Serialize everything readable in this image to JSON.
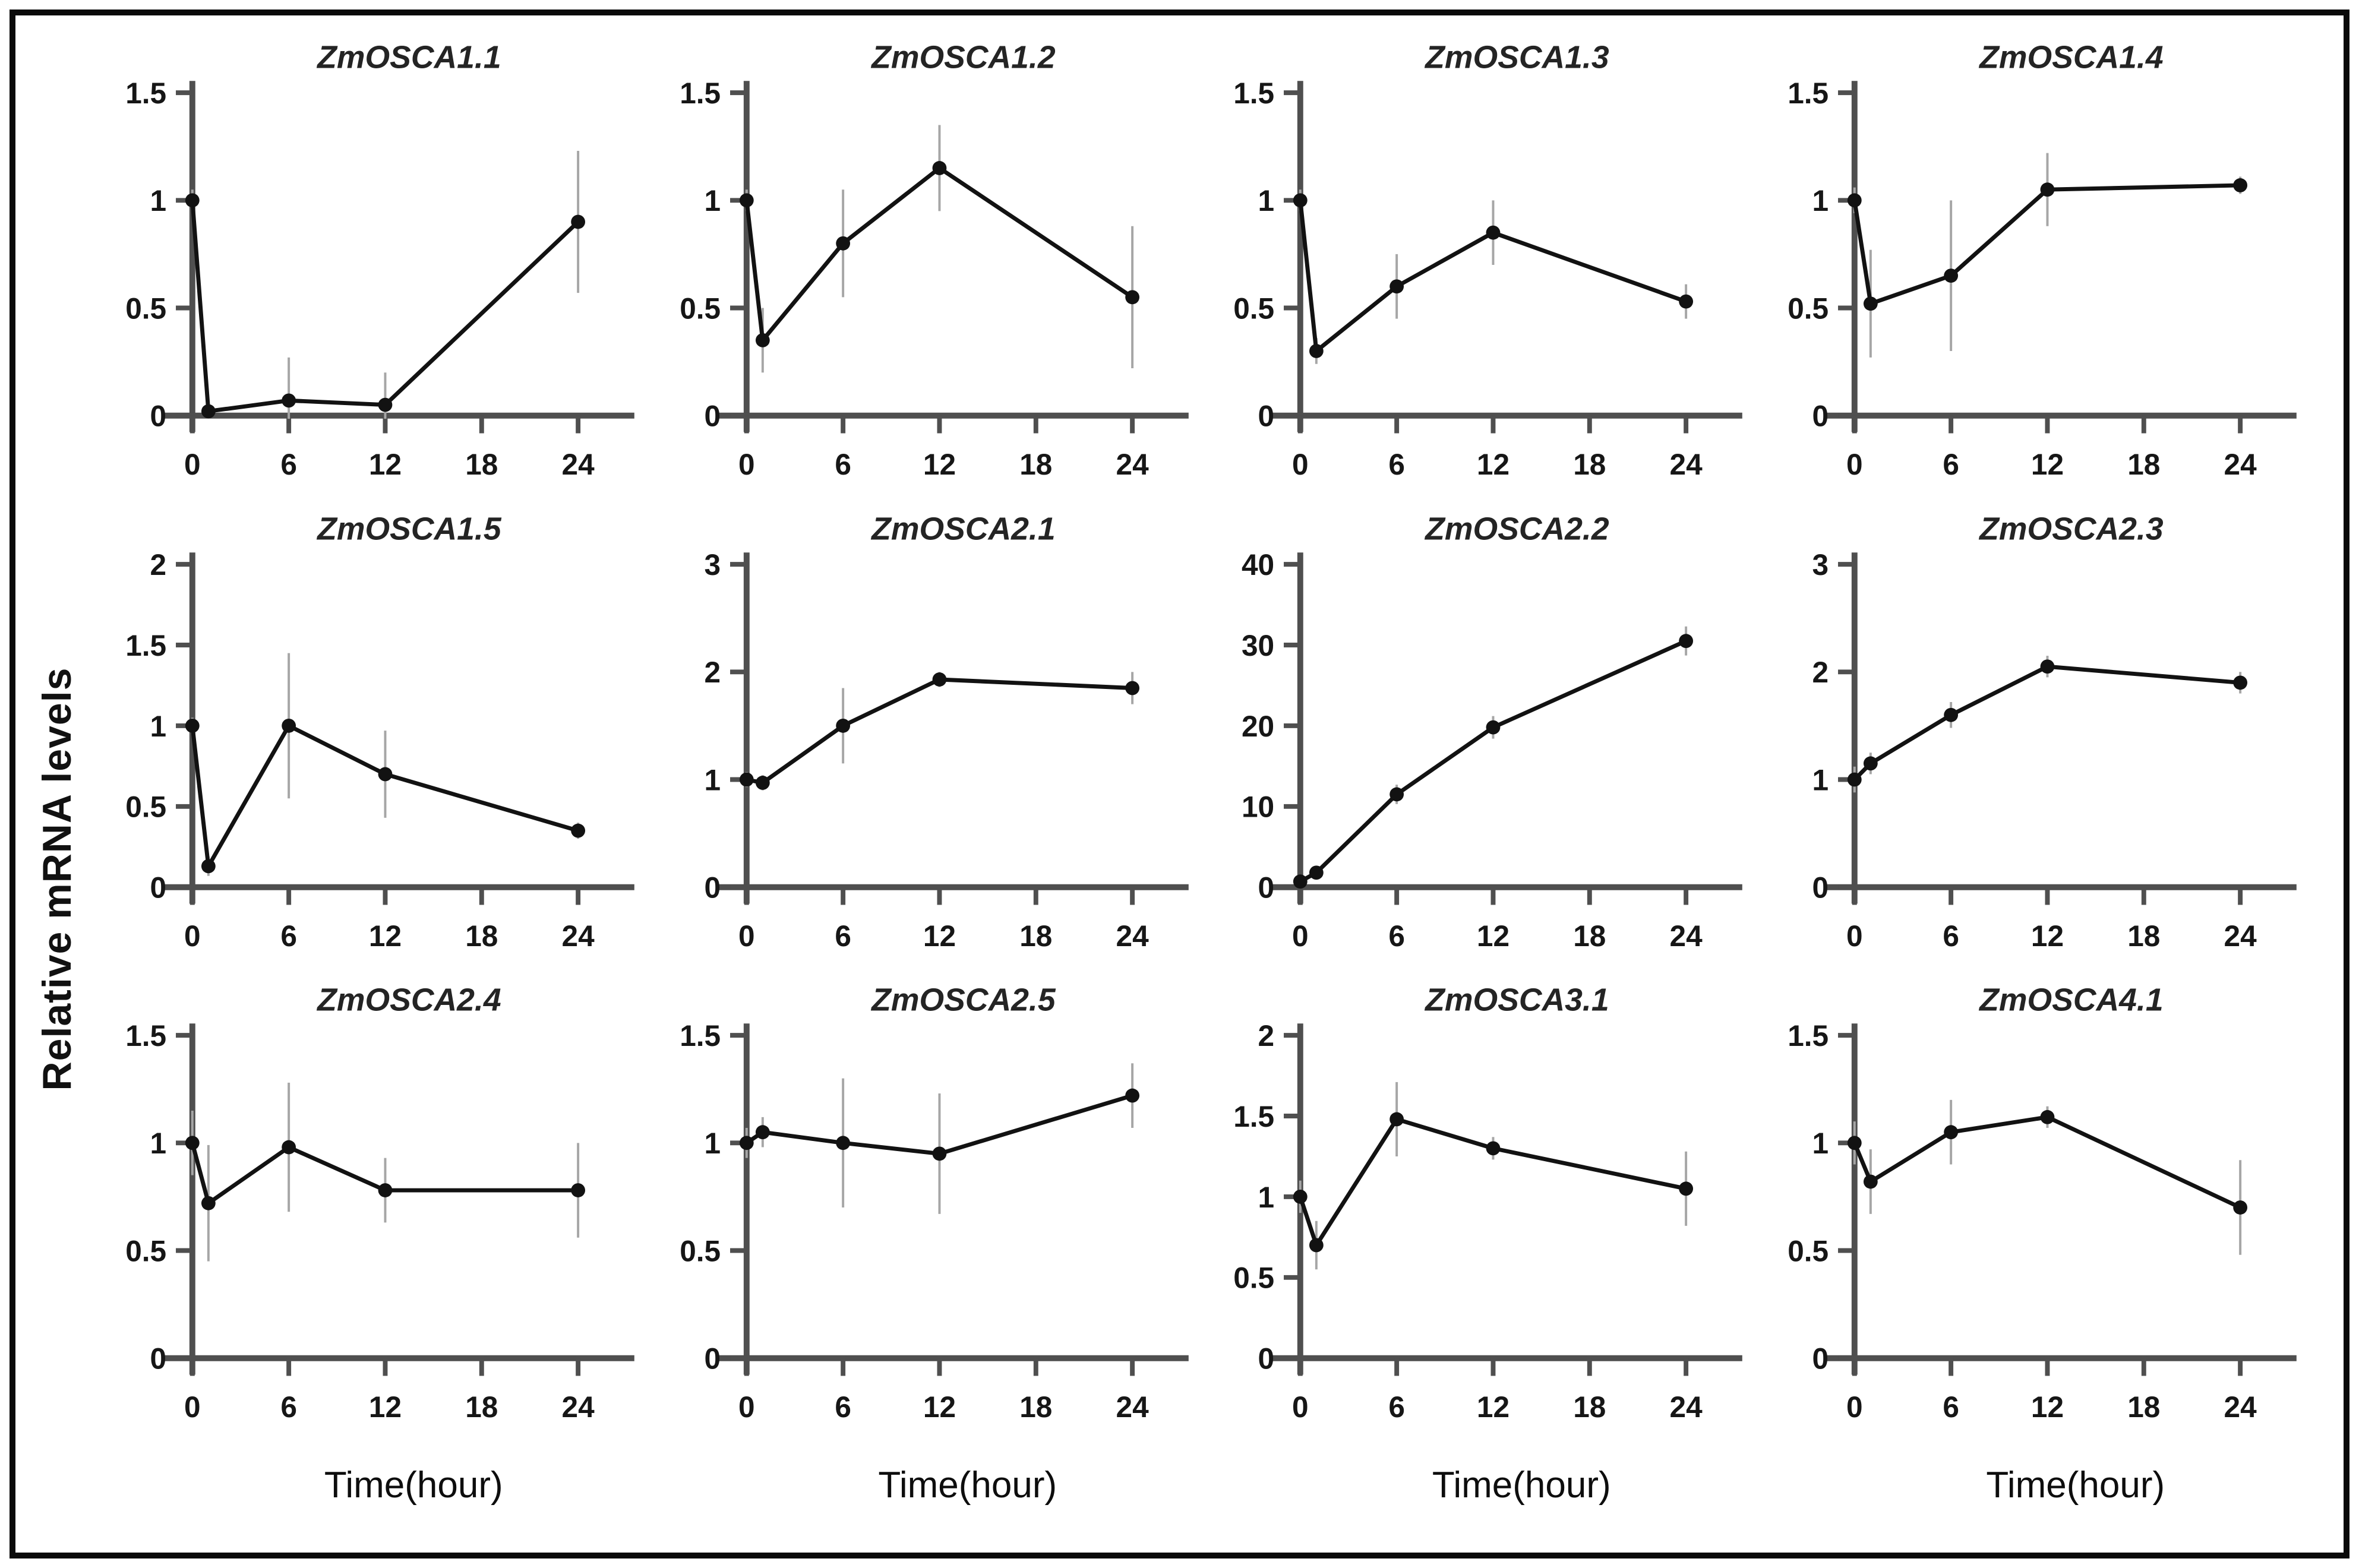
{
  "figure": {
    "ylabel": "Relative mRNA levels",
    "xlabel": "Time(hour)",
    "colors": {
      "frame": "#0a0a0a",
      "axis": "#4f4f4f",
      "tick_text": "#161616",
      "title_text": "#242424",
      "line": "#121212",
      "marker": "#121212",
      "error_bar": "#a6a6a6"
    }
  },
  "chart_data": [
    {
      "type": "line",
      "title": "ZmOSCA1.1",
      "x": [
        0,
        1,
        6,
        12,
        24
      ],
      "values": [
        1.0,
        0.02,
        0.07,
        0.05,
        0.9
      ],
      "errors": [
        0.05,
        0.02,
        0.2,
        0.15,
        0.33
      ],
      "yticks": [
        0,
        0.5,
        1,
        1.5
      ],
      "ylim": [
        0,
        1.5
      ],
      "xticks": [
        0,
        6,
        12,
        18,
        24
      ],
      "xlim": [
        0,
        27.5
      ],
      "xlabel": "Time(hour)",
      "grid": false,
      "legend": "none"
    },
    {
      "type": "line",
      "title": "ZmOSCA1.2",
      "x": [
        0,
        1,
        6,
        12,
        24
      ],
      "values": [
        1.0,
        0.35,
        0.8,
        1.15,
        0.55
      ],
      "errors": [
        0.05,
        0.15,
        0.25,
        0.2,
        0.33
      ],
      "yticks": [
        0,
        0.5,
        1,
        1.5
      ],
      "ylim": [
        0,
        1.5
      ],
      "xticks": [
        0,
        6,
        12,
        18,
        24
      ],
      "xlim": [
        0,
        27.5
      ],
      "xlabel": "Time(hour)",
      "grid": false,
      "legend": "none"
    },
    {
      "type": "line",
      "title": "ZmOSCA1.3",
      "x": [
        0,
        1,
        6,
        12,
        24
      ],
      "values": [
        1.0,
        0.3,
        0.6,
        0.85,
        0.53
      ],
      "errors": [
        0.05,
        0.06,
        0.15,
        0.15,
        0.08
      ],
      "yticks": [
        0,
        0.5,
        1,
        1.5
      ],
      "ylim": [
        0,
        1.5
      ],
      "xticks": [
        0,
        6,
        12,
        18,
        24
      ],
      "xlim": [
        0,
        27.5
      ],
      "xlabel": "Time(hour)",
      "grid": false,
      "legend": "none"
    },
    {
      "type": "line",
      "title": "ZmOSCA1.4",
      "x": [
        0,
        1,
        6,
        12,
        24
      ],
      "values": [
        1.0,
        0.52,
        0.65,
        1.05,
        1.07
      ],
      "errors": [
        0.06,
        0.25,
        0.35,
        0.17,
        0.04
      ],
      "yticks": [
        0,
        0.5,
        1,
        1.5
      ],
      "ylim": [
        0,
        1.5
      ],
      "xticks": [
        0,
        6,
        12,
        18,
        24
      ],
      "xlim": [
        0,
        27.5
      ],
      "xlabel": "Time(hour)",
      "grid": false,
      "legend": "none"
    },
    {
      "type": "line",
      "title": "ZmOSCA1.5",
      "x": [
        0,
        1,
        6,
        12,
        24
      ],
      "values": [
        1.0,
        0.13,
        1.0,
        0.7,
        0.35
      ],
      "errors": [
        0.05,
        0.06,
        0.45,
        0.27,
        0.05
      ],
      "yticks": [
        0,
        0.5,
        1,
        1.5,
        2
      ],
      "ylim": [
        0,
        2
      ],
      "xticks": [
        0,
        6,
        12,
        18,
        24
      ],
      "xlim": [
        0,
        27.5
      ],
      "xlabel": "Time(hour)",
      "grid": false,
      "legend": "none"
    },
    {
      "type": "line",
      "title": "ZmOSCA2.1",
      "x": [
        0,
        1,
        6,
        12,
        24
      ],
      "values": [
        1.0,
        0.97,
        1.5,
        1.93,
        1.85
      ],
      "errors": [
        0.07,
        0.07,
        0.35,
        0.07,
        0.15
      ],
      "yticks": [
        0,
        1,
        2,
        3
      ],
      "ylim": [
        0,
        3
      ],
      "xticks": [
        0,
        6,
        12,
        18,
        24
      ],
      "xlim": [
        0,
        27.5
      ],
      "xlabel": "Time(hour)",
      "grid": false,
      "legend": "none"
    },
    {
      "type": "line",
      "title": "ZmOSCA2.2",
      "x": [
        0,
        1,
        6,
        12,
        24
      ],
      "values": [
        0.7,
        1.8,
        11.5,
        19.8,
        30.5
      ],
      "errors": [
        0.5,
        0.8,
        1.2,
        1.4,
        1.8
      ],
      "yticks": [
        0,
        10,
        20,
        30,
        40
      ],
      "ylim": [
        0,
        40
      ],
      "xticks": [
        0,
        6,
        12,
        18,
        24
      ],
      "xlim": [
        0,
        27.5
      ],
      "xlabel": "Time(hour)",
      "grid": false,
      "legend": "none"
    },
    {
      "type": "line",
      "title": "ZmOSCA2.3",
      "x": [
        0,
        1,
        6,
        12,
        24
      ],
      "values": [
        1.0,
        1.15,
        1.6,
        2.05,
        1.9
      ],
      "errors": [
        0.12,
        0.1,
        0.12,
        0.1,
        0.1
      ],
      "yticks": [
        0,
        1,
        2,
        3
      ],
      "ylim": [
        0,
        3
      ],
      "xticks": [
        0,
        6,
        12,
        18,
        24
      ],
      "xlim": [
        0,
        27.5
      ],
      "xlabel": "Time(hour)",
      "grid": false,
      "legend": "none"
    },
    {
      "type": "line",
      "title": "ZmOSCA2.4",
      "x": [
        0,
        1,
        6,
        12,
        24
      ],
      "values": [
        1.0,
        0.72,
        0.98,
        0.78,
        0.78
      ],
      "errors": [
        0.15,
        0.27,
        0.3,
        0.15,
        0.22
      ],
      "yticks": [
        0,
        0.5,
        1,
        1.5
      ],
      "ylim": [
        0,
        1.5
      ],
      "xticks": [
        0,
        6,
        12,
        18,
        24
      ],
      "xlim": [
        0,
        27.5
      ],
      "xlabel": "Time(hour)",
      "grid": false,
      "legend": "none"
    },
    {
      "type": "line",
      "title": "ZmOSCA2.5",
      "x": [
        0,
        1,
        6,
        12,
        24
      ],
      "values": [
        1.0,
        1.05,
        1.0,
        0.95,
        1.22
      ],
      "errors": [
        0.07,
        0.07,
        0.3,
        0.28,
        0.15
      ],
      "yticks": [
        0,
        0.5,
        1,
        1.5
      ],
      "ylim": [
        0,
        1.5
      ],
      "xticks": [
        0,
        6,
        12,
        18,
        24
      ],
      "xlim": [
        0,
        27.5
      ],
      "xlabel": "Time(hour)",
      "grid": false,
      "legend": "none"
    },
    {
      "type": "line",
      "title": "ZmOSCA3.1",
      "x": [
        0,
        1,
        6,
        12,
        24
      ],
      "values": [
        1.0,
        0.7,
        1.48,
        1.3,
        1.05
      ],
      "errors": [
        0.1,
        0.15,
        0.23,
        0.07,
        0.23
      ],
      "yticks": [
        0,
        0.5,
        1,
        1.5,
        2
      ],
      "ylim": [
        0,
        2
      ],
      "xticks": [
        0,
        6,
        12,
        18,
        24
      ],
      "xlim": [
        0,
        27.5
      ],
      "xlabel": "Time(hour)",
      "grid": false,
      "legend": "none"
    },
    {
      "type": "line",
      "title": "ZmOSCA4.1",
      "x": [
        0,
        1,
        6,
        12,
        24
      ],
      "values": [
        1.0,
        0.82,
        1.05,
        1.12,
        0.7
      ],
      "errors": [
        0.1,
        0.15,
        0.15,
        0.05,
        0.22
      ],
      "yticks": [
        0,
        0.5,
        1,
        1.5
      ],
      "ylim": [
        0,
        1.5
      ],
      "xticks": [
        0,
        6,
        12,
        18,
        24
      ],
      "xlim": [
        0,
        27.5
      ],
      "xlabel": "Time(hour)",
      "grid": false,
      "legend": "none"
    }
  ]
}
